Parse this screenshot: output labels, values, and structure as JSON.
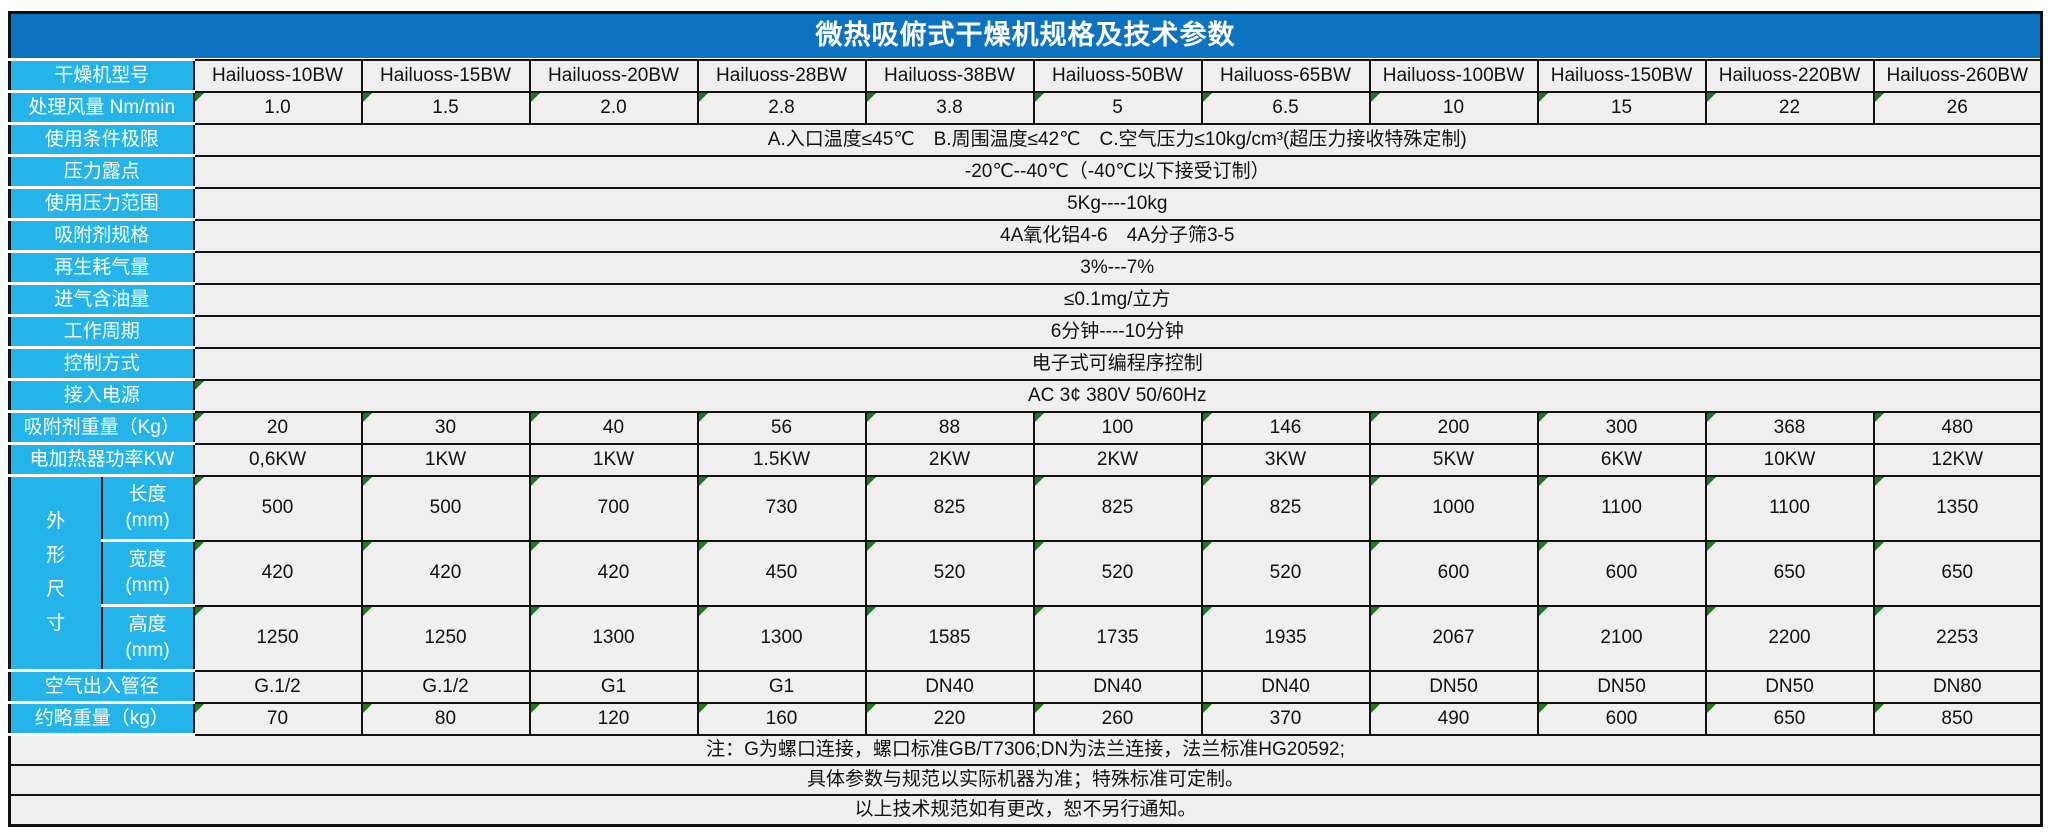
{
  "title": "微热吸俯式干燥机规格及技术参数",
  "colors": {
    "title_bg": "#0d72bf",
    "label_bg": "#25b4e9",
    "cell_bg": "#efefef",
    "border": "#111111",
    "indicator_green": "#1f7a1f"
  },
  "table": {
    "rows": [
      {
        "kind": "models",
        "label": "干燥机型号",
        "values": [
          "Hailuoss-10BW",
          "Hailuoss-15BW",
          "Hailuoss-20BW",
          "Hailuoss-28BW",
          "Hailuoss-38BW",
          "Hailuoss-50BW",
          "Hailuoss-65BW",
          "Hailuoss-100BW",
          "Hailuoss-150BW",
          "Hailuoss-220BW",
          "Hailuoss-260BW"
        ]
      },
      {
        "kind": "values",
        "label": "处理风量 Nm/min",
        "green": true,
        "values": [
          "1.0",
          "1.5",
          "2.0",
          "2.8",
          "3.8",
          "5",
          "6.5",
          "10",
          "15",
          "22",
          "26"
        ]
      },
      {
        "kind": "merged",
        "label": "使用条件极限",
        "green": false,
        "value": "A.入口温度≤45℃　B.周围温度≤42℃　C.空气压力≤10kg/cm³(超压力接收特殊定制)"
      },
      {
        "kind": "merged",
        "label": "压力露点",
        "green": false,
        "value": "-20℃--40℃（-40℃以下接受订制）"
      },
      {
        "kind": "merged",
        "label": "使用压力范围",
        "green": false,
        "value": "5Kg----10kg"
      },
      {
        "kind": "merged",
        "label": "吸附剂规格",
        "green": false,
        "value": "4A氧化铝4-6　4A分子筛3-5"
      },
      {
        "kind": "merged",
        "label": "再生耗气量",
        "green": false,
        "value": "3%---7%"
      },
      {
        "kind": "merged",
        "label": "进气含油量",
        "green": false,
        "value": "≤0.1mg/立方"
      },
      {
        "kind": "merged",
        "label": "工作周期",
        "green": false,
        "value": "6分钟----10分钟"
      },
      {
        "kind": "merged",
        "label": "控制方式",
        "green": false,
        "value": "电子式可编程序控制"
      },
      {
        "kind": "merged",
        "label": "接入电源",
        "green": true,
        "value": "AC 3¢ 380V 50/60Hz"
      },
      {
        "kind": "values",
        "label": "吸附剂重量（Kg）",
        "green": true,
        "values": [
          "20",
          "30",
          "40",
          "56",
          "88",
          "100",
          "146",
          "200",
          "300",
          "368",
          "480"
        ]
      },
      {
        "kind": "values",
        "label": "电加热器功率KW",
        "green": false,
        "values": [
          "0,6KW",
          "1KW",
          "1KW",
          "1.5KW",
          "2KW",
          "2KW",
          "3KW",
          "5KW",
          "6KW",
          "10KW",
          "12KW"
        ]
      },
      {
        "kind": "dims",
        "group_label": "外\n形\n尺\n寸",
        "sub": [
          {
            "label": "长度\n(mm)",
            "green": true,
            "values": [
              "500",
              "500",
              "700",
              "730",
              "825",
              "825",
              "825",
              "1000",
              "1100",
              "1100",
              "1350"
            ]
          },
          {
            "label": "宽度\n(mm)",
            "green": true,
            "values": [
              "420",
              "420",
              "420",
              "450",
              "520",
              "520",
              "520",
              "600",
              "600",
              "650",
              "650"
            ]
          },
          {
            "label": "高度\n(mm)",
            "green": true,
            "values": [
              "1250",
              "1250",
              "1300",
              "1300",
              "1585",
              "1735",
              "1935",
              "2067",
              "2100",
              "2200",
              "2253"
            ]
          }
        ]
      },
      {
        "kind": "values",
        "label": "空气出入管径",
        "green": false,
        "values": [
          "G.1/2",
          "G.1/2",
          "G1",
          "G1",
          "DN40",
          "DN40",
          "DN40",
          "DN50",
          "DN50",
          "DN50",
          "DN80"
        ]
      },
      {
        "kind": "values",
        "label": "约略重量（kg）",
        "green": true,
        "values": [
          "70",
          "80",
          "120",
          "160",
          "220",
          "260",
          "370",
          "490",
          "600",
          "650",
          "850"
        ]
      },
      {
        "kind": "note",
        "text": "注：G为螺口连接，螺口标准GB/T7306;DN为法兰连接，法兰标准HG20592;"
      },
      {
        "kind": "note",
        "text": "具体参数与规范以实际机器为准；特殊标准可定制。"
      },
      {
        "kind": "note",
        "text": "以上技术规范如有更改，恕不另行通知。"
      }
    ]
  }
}
